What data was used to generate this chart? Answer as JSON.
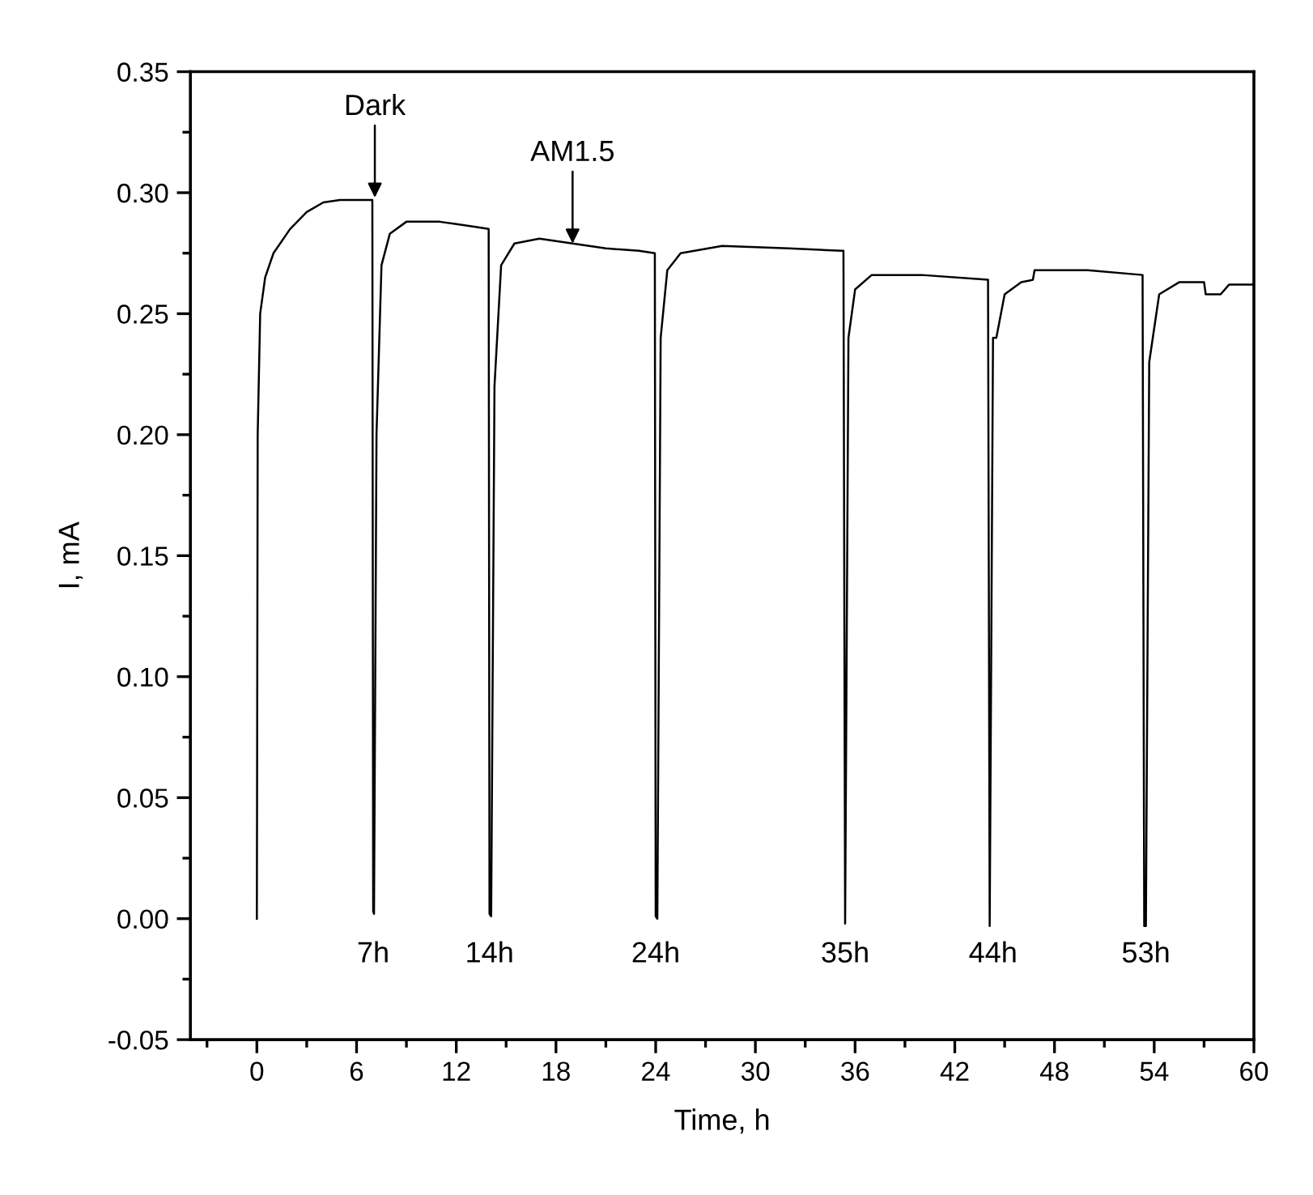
{
  "chart_data": {
    "type": "line",
    "xlabel": "Time, h",
    "ylabel": "I, mA",
    "xlim": [
      -4,
      60
    ],
    "xticks": [
      0,
      6,
      12,
      18,
      24,
      30,
      36,
      42,
      48,
      54,
      60
    ],
    "ylim": [
      -0.05,
      0.35
    ],
    "yticks": [
      {
        "value": -0.05,
        "label": "-0.05"
      },
      {
        "value": 0,
        "label": "0.00"
      },
      {
        "value": 0.05,
        "label": "0.05"
      },
      {
        "value": 0.1,
        "label": "0.10"
      },
      {
        "value": 0.15,
        "label": "0.15"
      },
      {
        "value": 0.2,
        "label": "0.20"
      },
      {
        "value": 0.25,
        "label": "0.25"
      },
      {
        "value": 0.3,
        "label": "0.30"
      },
      {
        "value": 0.35,
        "label": "0.35"
      }
    ],
    "grid": false,
    "marker": "none",
    "line_style": "solid",
    "series": [
      {
        "color": "#000000",
        "x": [
          0,
          0.05,
          0.2,
          0.5,
          1,
          2,
          3,
          4,
          5,
          6,
          6.95,
          7.0,
          7.05,
          7.2,
          7.5,
          8,
          9,
          10,
          11,
          12,
          13,
          13.95,
          14.0,
          14.1,
          14.3,
          14.7,
          15.5,
          17,
          19,
          21,
          23,
          23.95,
          24.0,
          24.1,
          24.3,
          24.7,
          25.5,
          28,
          32,
          35.2,
          35.3,
          35.4,
          35.6,
          36,
          37,
          40,
          44.0,
          44.1,
          44.3,
          44.5,
          45,
          46,
          46.7,
          46.8,
          50,
          53.3,
          53.4,
          53.5,
          53.7,
          54.3,
          55.5,
          57,
          57.1,
          58,
          58.5,
          60
        ],
        "values": [
          0,
          0.2,
          0.25,
          0.265,
          0.275,
          0.285,
          0.292,
          0.296,
          0.297,
          0.297,
          0.297,
          0.003,
          0.002,
          0.2,
          0.27,
          0.283,
          0.288,
          0.288,
          0.288,
          0.287,
          0.286,
          0.285,
          0.002,
          0.001,
          0.22,
          0.27,
          0.279,
          0.281,
          0.279,
          0.277,
          0.276,
          0.275,
          0.001,
          0.0,
          0.24,
          0.268,
          0.275,
          0.278,
          0.277,
          0.276,
          0.276,
          -0.002,
          0.24,
          0.26,
          0.266,
          0.266,
          0.264,
          -0.003,
          0.24,
          0.24,
          0.258,
          0.263,
          0.264,
          0.268,
          0.268,
          0.266,
          -0.003,
          -0.003,
          0.23,
          0.258,
          0.263,
          0.263,
          0.258,
          0.258,
          0.262,
          0.262
        ]
      }
    ],
    "annotations": [
      {
        "text": "Dark",
        "x": 7.1,
        "y": 0.298
      },
      {
        "text": "AM1.5",
        "x": 19,
        "y": 0.279
      },
      {
        "text": "7h",
        "x": 7,
        "y": 0
      },
      {
        "text": "14h",
        "x": 14,
        "y": 0
      },
      {
        "text": "24h",
        "x": 24,
        "y": 0
      },
      {
        "text": "35h",
        "x": 35.4,
        "y": 0
      },
      {
        "text": "44h",
        "x": 44.3,
        "y": 0
      },
      {
        "text": "53h",
        "x": 53.5,
        "y": 0
      }
    ]
  }
}
